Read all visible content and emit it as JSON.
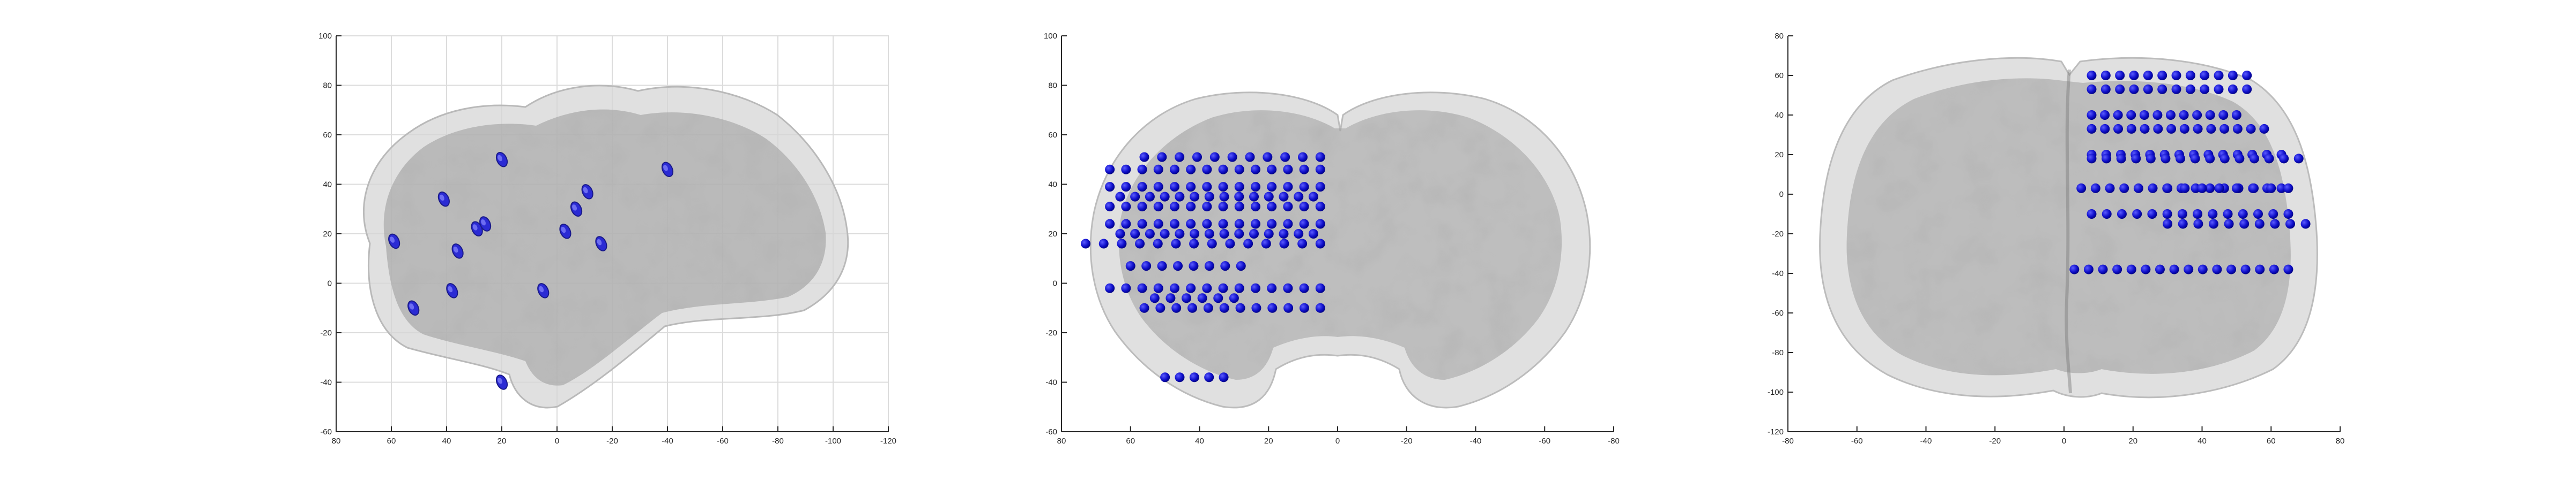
{
  "panels": [
    {
      "name": "sagittal-view",
      "x_ticks": [
        "80",
        "60",
        "40",
        "20",
        "0",
        "-20",
        "-40",
        "-60",
        "-80",
        "-100",
        "-120"
      ],
      "y_ticks": [
        "100",
        "80",
        "60",
        "40",
        "20",
        "0",
        "-20",
        "-40",
        "-60"
      ],
      "x_range": [
        80,
        -120
      ],
      "y_range": [
        -60,
        100
      ],
      "grid": true,
      "electrode_color": "#2b2bd4",
      "electrodes": [
        {
          "x": 59,
          "y": 17
        },
        {
          "x": 52,
          "y": -10
        },
        {
          "x": 41,
          "y": 34
        },
        {
          "x": 38,
          "y": -3
        },
        {
          "x": 36,
          "y": 13
        },
        {
          "x": 29,
          "y": 22
        },
        {
          "x": 26,
          "y": 24
        },
        {
          "x": 20,
          "y": 50
        },
        {
          "x": 5,
          "y": -3
        },
        {
          "x": -7,
          "y": 30
        },
        {
          "x": -11,
          "y": 37
        },
        {
          "x": -16,
          "y": 16
        },
        {
          "x": -3,
          "y": 21
        },
        {
          "x": -40,
          "y": 46
        },
        {
          "x": 20,
          "y": -40
        }
      ]
    },
    {
      "name": "coronal-view",
      "x_ticks": [
        "80",
        "60",
        "40",
        "20",
        "0",
        "-20",
        "-40",
        "-60",
        "-80"
      ],
      "y_ticks": [
        "100",
        "80",
        "60",
        "40",
        "20",
        "0",
        "-20",
        "-40",
        "-60"
      ],
      "x_range": [
        80,
        -80
      ],
      "y_range": [
        -60,
        100
      ],
      "grid": false,
      "electrode_color": "#0000cc",
      "rows": [
        {
          "y": 51,
          "x_from": 56,
          "x_to": 5,
          "count": 11
        },
        {
          "y": 46,
          "x_from": 66,
          "x_to": 5,
          "count": 14
        },
        {
          "y": 39,
          "x_from": 66,
          "x_to": 5,
          "count": 14
        },
        {
          "y": 35,
          "x_from": 63,
          "x_to": 7,
          "count": 14
        },
        {
          "y": 31,
          "x_from": 66,
          "x_to": 5,
          "count": 14
        },
        {
          "y": 24,
          "x_from": 66,
          "x_to": 5,
          "count": 14
        },
        {
          "y": 20,
          "x_from": 63,
          "x_to": 7,
          "count": 14
        },
        {
          "y": 16,
          "x_from": 73,
          "x_to": 5,
          "count": 14
        },
        {
          "y": 7,
          "x_from": 60,
          "x_to": 28,
          "count": 8
        },
        {
          "y": -2,
          "x_from": 66,
          "x_to": 5,
          "count": 14
        },
        {
          "y": -6,
          "x_from": 53,
          "x_to": 30,
          "count": 6
        },
        {
          "y": -10,
          "x_from": 56,
          "x_to": 5,
          "count": 12
        },
        {
          "y": -38,
          "x_from": 50,
          "x_to": 33,
          "count": 5
        }
      ]
    },
    {
      "name": "axial-view",
      "x_ticks": [
        "-80",
        "-60",
        "-40",
        "-20",
        "0",
        "20",
        "40",
        "60",
        "80"
      ],
      "y_ticks": [
        "80",
        "60",
        "40",
        "20",
        "0",
        "-20",
        "-40",
        "-60",
        "-80",
        "-100",
        "-120"
      ],
      "x_range": [
        -80,
        80
      ],
      "y_range": [
        -120,
        80
      ],
      "grid": false,
      "electrode_color": "#0000cc",
      "rows": [
        {
          "y": 60,
          "x_from": 8,
          "x_to": 53,
          "count": 12
        },
        {
          "y": 53,
          "x_from": 8,
          "x_to": 53,
          "count": 12
        },
        {
          "y": 40,
          "x_from": 8,
          "x_to": 50,
          "count": 12
        },
        {
          "y": 33,
          "x_from": 8,
          "x_to": 58,
          "count": 14
        },
        {
          "y": 20,
          "x_from": 8,
          "x_to": 63,
          "count": 14
        },
        {
          "y": 18,
          "x_from": 8,
          "x_to": 68,
          "count": 15
        },
        {
          "y": 3,
          "x_from": 5,
          "x_to": 63,
          "count": 15
        },
        {
          "y": 3,
          "x_from": 30,
          "x_to": 65,
          "count": 8
        },
        {
          "y": -10,
          "x_from": 8,
          "x_to": 65,
          "count": 14
        },
        {
          "y": -15,
          "x_from": 30,
          "x_to": 70,
          "count": 10
        },
        {
          "y": -38,
          "x_from": 3,
          "x_to": 65,
          "count": 16
        }
      ]
    }
  ],
  "colors": {
    "brain_fill": "#8c8c8c",
    "brain_outer": "#d2d2d2",
    "axis": "#262626",
    "grid": "#dcdcdc"
  }
}
